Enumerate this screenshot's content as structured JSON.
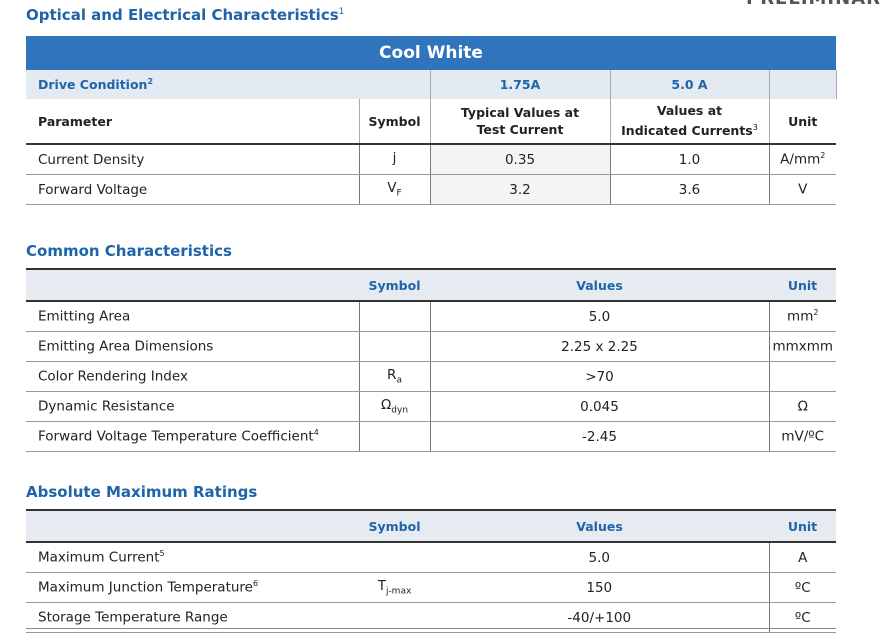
{
  "corner_mark": "PRELIMINARY",
  "optical": {
    "title": "Optical and Electrical Characteristics",
    "title_note": "1",
    "banner": "Cool White",
    "drive_label": "Drive Condition",
    "drive_note": "2",
    "drive_values": [
      "1.75A",
      "5.0  A"
    ],
    "headers": {
      "parameter": "Parameter",
      "symbol": "Symbol",
      "typical_line1": "Typical Values at",
      "typical_line2": "Test Current",
      "values_line1": "Values  at",
      "values_line2": "Indicated Currents",
      "values_note": "3",
      "unit": "Unit"
    },
    "rows": [
      {
        "param": "Current  Density",
        "symbol": "j",
        "symbol_sub": "",
        "typical": "0.35",
        "value": "1.0",
        "unit": "A/mm",
        "unit_sup": "2"
      },
      {
        "param": "Forward  Voltage",
        "symbol": "V",
        "symbol_sub": "F",
        "typical": "3.2",
        "value": "3.6",
        "unit": "V",
        "unit_sup": ""
      }
    ]
  },
  "common": {
    "title": "Common  Characteristics",
    "headers": {
      "symbol": "Symbol",
      "values": "Values",
      "unit": "Unit"
    },
    "rows": [
      {
        "param": "Emitting  Area",
        "symbol": "",
        "symbol_sub": "",
        "value": "5.0",
        "unit": "mm",
        "unit_sup": "2",
        "note": ""
      },
      {
        "param": "Emitting  Area  Dimensions",
        "symbol": "",
        "symbol_sub": "",
        "value": "2.25  x  2.25",
        "unit": "mmxmm",
        "unit_sup": "",
        "note": ""
      },
      {
        "param": "Color  Rendering  Index",
        "symbol": "R",
        "symbol_sub": "a",
        "value": ">70",
        "unit": "",
        "unit_sup": "",
        "note": ""
      },
      {
        "param": "Dynamic  Resistance",
        "symbol": "Ω",
        "symbol_sub": "dyn",
        "value": "0.045",
        "unit": "Ω",
        "unit_sup": "",
        "note": ""
      },
      {
        "param": "Forward  Voltage  Temperature  Coefficient",
        "symbol": "",
        "symbol_sub": "",
        "value": "-2.45",
        "unit": "mV/ºC",
        "unit_sup": "",
        "note": "4"
      }
    ]
  },
  "absolute": {
    "title": "Absolute  Maximum  Ratings",
    "headers": {
      "symbol": "Symbol",
      "values": "Values",
      "unit": "Unit"
    },
    "rows": [
      {
        "param": "Maximum  Current",
        "symbol": "",
        "symbol_sub": "",
        "value": "5.0",
        "unit": "A",
        "note": "5"
      },
      {
        "param": "Maximum  Junction  Temperature",
        "symbol": "T",
        "symbol_sub": "j-max",
        "value": "150",
        "unit": "ºC",
        "note": "6"
      },
      {
        "param": "Storage  Temperature  Range",
        "symbol": "",
        "symbol_sub": "",
        "value": "-40/+100",
        "unit": "ºC",
        "note": ""
      }
    ]
  }
}
